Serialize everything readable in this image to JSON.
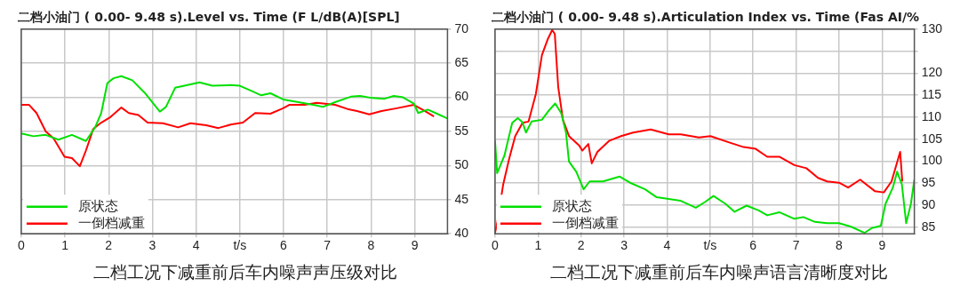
{
  "chart_data": [
    {
      "type": "line",
      "title": "二档小油门 ( 0.00- 9.48 s).Level vs. Time (F L/dB(A)[SPL]",
      "xlim": [
        0,
        9.75
      ],
      "xticks": [
        0,
        1,
        2,
        3,
        4,
        {
          "value": 5,
          "label": "t/s"
        },
        6,
        7,
        8,
        9
      ],
      "ylim": [
        40,
        70
      ],
      "yticks": [
        40,
        45,
        50,
        55,
        60,
        65,
        70
      ],
      "grid": true,
      "legend": "bottom left",
      "annotations": [
        "二档工况下减重前后车内噪声声压级对比"
      ],
      "series": [
        {
          "name": "原状态",
          "color": "#00e000",
          "x": [
            0,
            0.28,
            0.56,
            0.85,
            1.16,
            1.48,
            1.69,
            1.83,
            1.97,
            2.11,
            2.29,
            2.54,
            2.82,
            3.17,
            3.31,
            3.52,
            3.8,
            4.08,
            4.37,
            4.79,
            5.0,
            5.28,
            5.49,
            5.7,
            5.99,
            6.34,
            6.76,
            6.9,
            7.18,
            7.54,
            7.75,
            8.03,
            8.31,
            8.52,
            8.73,
            8.98,
            9.08,
            9.3,
            9.51,
            9.75
          ],
          "values": [
            54.7,
            54.3,
            54.5,
            53.8,
            54.5,
            53.6,
            55.6,
            57.7,
            62.1,
            62.8,
            63.1,
            62.5,
            60.7,
            57.9,
            58.6,
            61.4,
            61.8,
            62.2,
            61.7,
            61.8,
            61.7,
            60.9,
            60.3,
            60.6,
            59.7,
            59.3,
            58.8,
            58.6,
            59.3,
            60.1,
            60.2,
            59.9,
            59.8,
            60.2,
            60.0,
            59.1,
            57.7,
            58.2,
            57.6,
            56.9
          ]
        },
        {
          "name": "一倒档减重",
          "color": "#ff0000",
          "x": [
            0,
            0.18,
            0.35,
            0.56,
            0.74,
            0.99,
            1.16,
            1.34,
            1.48,
            1.65,
            1.83,
            2.04,
            2.29,
            2.46,
            2.68,
            2.89,
            3.24,
            3.59,
            3.87,
            4.23,
            4.51,
            4.79,
            5.07,
            5.35,
            5.7,
            5.99,
            6.13,
            6.48,
            6.76,
            7.18,
            7.46,
            7.68,
            7.96,
            8.24,
            8.59,
            8.98,
            9.23,
            9.44
          ],
          "values": [
            58.9,
            58.9,
            57.7,
            55.0,
            54.0,
            51.3,
            51.1,
            49.9,
            52.2,
            55.4,
            56.3,
            57.1,
            58.5,
            57.7,
            57.4,
            56.3,
            56.2,
            55.6,
            56.2,
            55.9,
            55.5,
            56.0,
            56.3,
            57.7,
            57.6,
            58.4,
            58.9,
            58.9,
            59.2,
            58.9,
            58.3,
            58.0,
            57.5,
            58.0,
            58.4,
            58.9,
            58.0,
            57.2
          ]
        }
      ]
    },
    {
      "type": "line",
      "title": "二档小油门 ( 0.00- 9.48 s).Articulation Index vs. Time (Fas AI/%",
      "xlim": [
        0,
        9.75
      ],
      "xticks": [
        0,
        1,
        2,
        3,
        4,
        {
          "value": 5,
          "label": "t/s"
        },
        6,
        7,
        8,
        9
      ],
      "ylim": [
        83.5,
        130
      ],
      "yticks": [
        85,
        90,
        95,
        100,
        105,
        110,
        115,
        120,
        {
          "value": 125,
          "label": null
        },
        130
      ],
      "grid": true,
      "legend": "bottom left",
      "annotations": [
        "二档工况下减重前后车内噪声语言清晰度对比"
      ],
      "series": [
        {
          "name": "原状态",
          "color": "#00e000",
          "x": [
            0,
            0.05,
            0.22,
            0.4,
            0.53,
            0.64,
            0.72,
            0.85,
            1.09,
            1.26,
            1.4,
            1.54,
            1.65,
            1.72,
            1.89,
            2.06,
            2.2,
            2.51,
            2.9,
            3.14,
            3.49,
            3.76,
            4.04,
            4.32,
            4.67,
            4.88,
            5.08,
            5.36,
            5.57,
            5.85,
            6.13,
            6.33,
            6.61,
            6.96,
            7.17,
            7.44,
            7.72,
            8.0,
            8.28,
            8.59,
            8.76,
            8.97,
            9.08,
            9.25,
            9.35,
            9.46,
            9.56,
            9.67,
            9.75
          ],
          "values": [
            104.6,
            97.3,
            101.3,
            108.7,
            109.8,
            108.8,
            106.5,
            109.0,
            109.4,
            111.6,
            113.1,
            110.9,
            106.5,
            99.9,
            97.6,
            93.6,
            95.4,
            95.4,
            96.5,
            95.1,
            93.6,
            91.8,
            91.4,
            91.0,
            89.4,
            90.7,
            92.1,
            90.3,
            88.5,
            89.9,
            88.8,
            87.7,
            88.4,
            86.9,
            87.3,
            86.2,
            85.9,
            85.9,
            85.1,
            83.7,
            84.8,
            85.3,
            90.3,
            94.0,
            97.6,
            94.7,
            85.9,
            90.3,
            95.8
          ]
        },
        {
          "name": "一倒档减重",
          "color": "#ff0000",
          "x": [
            0,
            0.05,
            0.19,
            0.33,
            0.47,
            0.64,
            0.78,
            0.95,
            1.09,
            1.23,
            1.33,
            1.39,
            1.47,
            1.58,
            1.72,
            1.96,
            2.03,
            2.17,
            2.25,
            2.38,
            2.65,
            2.93,
            3.21,
            3.62,
            4.04,
            4.32,
            4.74,
            5.01,
            5.43,
            5.78,
            6.06,
            6.33,
            6.61,
            6.96,
            7.24,
            7.51,
            7.72,
            8.0,
            8.21,
            8.49,
            8.83,
            9.04,
            9.22,
            9.42,
            9.47
          ],
          "values": [
            83.7,
            85.9,
            94.7,
            100.6,
            105.7,
            108.7,
            109.0,
            115.3,
            124.1,
            127.8,
            129.8,
            128.9,
            116.8,
            109.4,
            105.7,
            103.5,
            102.4,
            103.9,
            99.5,
            102.1,
            104.6,
            105.7,
            106.5,
            107.2,
            106.1,
            106.1,
            105.4,
            105.7,
            104.3,
            103.2,
            102.8,
            101.0,
            101.0,
            99.1,
            98.4,
            96.2,
            95.4,
            95.1,
            94.0,
            95.8,
            93.2,
            92.9,
            95.4,
            102.1,
            95.4
          ]
        }
      ]
    }
  ]
}
